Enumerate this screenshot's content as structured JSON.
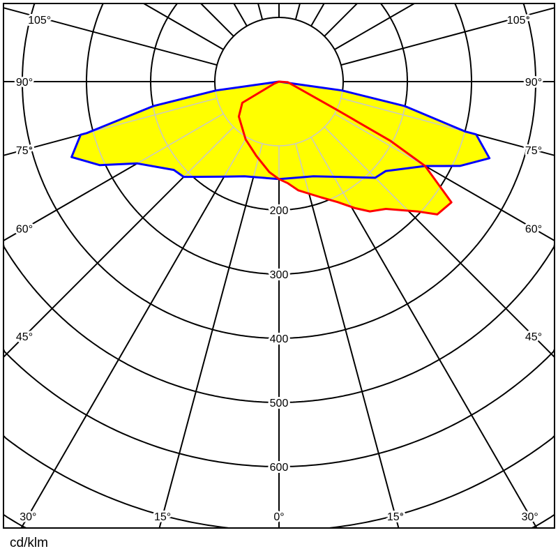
{
  "chart_data": {
    "type": "polar",
    "unit_label": "cd/klm",
    "radial_grid": [
      100,
      200,
      300,
      400,
      500,
      600,
      700,
      800,
      900
    ],
    "radial_tick_labels": [
      {
        "value": 200,
        "label": "200"
      },
      {
        "value": 300,
        "label": "300"
      },
      {
        "value": 400,
        "label": "400"
      },
      {
        "value": 500,
        "label": "500"
      },
      {
        "value": 600,
        "label": "600"
      }
    ],
    "angle_grid_step_deg": 15,
    "angle_tick_labels": [
      {
        "angle": -105,
        "label": "105°"
      },
      {
        "angle": -90,
        "label": "90°"
      },
      {
        "angle": -75,
        "label": "75°"
      },
      {
        "angle": -60,
        "label": "60°"
      },
      {
        "angle": -45,
        "label": "45°"
      },
      {
        "angle": -30,
        "label": "30°"
      },
      {
        "angle": -15,
        "label": "15°"
      },
      {
        "angle": 0,
        "label": "0°"
      },
      {
        "angle": 15,
        "label": "15°"
      },
      {
        "angle": 30,
        "label": "30°"
      },
      {
        "angle": 45,
        "label": "45°"
      },
      {
        "angle": 60,
        "label": "60°"
      },
      {
        "angle": 75,
        "label": "75°"
      },
      {
        "angle": 90,
        "label": "90°"
      },
      {
        "angle": 105,
        "label": "105°"
      }
    ],
    "fill_color": "#ffff00",
    "series": [
      {
        "color": "#0000ff",
        "points": [
          [
            -90,
            0
          ],
          [
            -82,
            99
          ],
          [
            -79,
            199
          ],
          [
            -75,
            310
          ],
          [
            -75,
            320
          ],
          [
            -70,
            344
          ],
          [
            -65,
            308
          ],
          [
            -60,
            255
          ],
          [
            -50,
            214
          ],
          [
            -45,
            210
          ],
          [
            -30,
            171
          ],
          [
            -20,
            157
          ],
          [
            0,
            152
          ],
          [
            20,
            157
          ],
          [
            45,
            212
          ],
          [
            50,
            217
          ],
          [
            60,
            263
          ],
          [
            65,
            311
          ],
          [
            70,
            349
          ],
          [
            75,
            318
          ],
          [
            75,
            300
          ],
          [
            79,
            199
          ],
          [
            82,
            99
          ],
          [
            90,
            0
          ]
        ]
      },
      {
        "color": "#ff0000",
        "points": [
          [
            -67,
            8
          ],
          [
            -60,
            66
          ],
          [
            -49,
            83
          ],
          [
            -30,
            104
          ],
          [
            -17,
            121
          ],
          [
            -6,
            142
          ],
          [
            0,
            152
          ],
          [
            5,
            159
          ],
          [
            10,
            172
          ],
          [
            20,
            192
          ],
          [
            26,
            209
          ],
          [
            31,
            230
          ],
          [
            35,
            247
          ],
          [
            40,
            259
          ],
          [
            47,
            297
          ],
          [
            50,
            322
          ],
          [
            55,
            328
          ],
          [
            60,
            263
          ],
          [
            62,
            197
          ],
          [
            64,
            100
          ],
          [
            86,
            14
          ],
          [
            90,
            0
          ]
        ]
      }
    ]
  }
}
